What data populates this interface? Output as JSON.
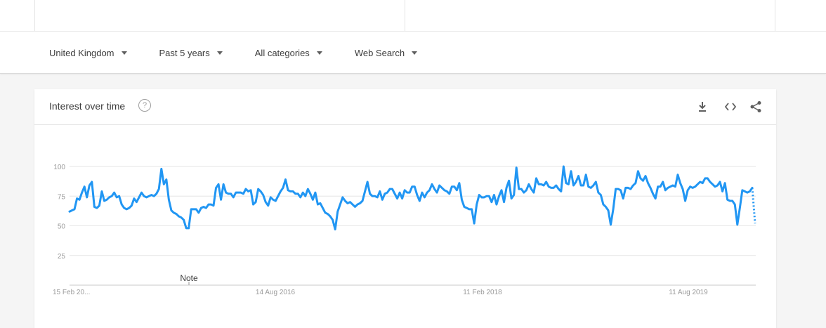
{
  "filters": [
    {
      "label": "United Kingdom"
    },
    {
      "label": "Past 5 years"
    },
    {
      "label": "All categories"
    },
    {
      "label": "Web Search"
    }
  ],
  "card": {
    "title": "Interest over time",
    "help_icon": "help-circle-icon",
    "tools": [
      "download-icon",
      "embed-code-icon",
      "share-icon"
    ]
  },
  "chart_data": {
    "type": "line",
    "ylim": [
      0,
      100
    ],
    "y_ticks": [
      "100",
      "75",
      "50",
      "25"
    ],
    "x_tick_labels": [
      "15 Feb 20...",
      "14 Aug 2016",
      "11 Feb 2018",
      "11 Aug 2019"
    ],
    "annotation": "Note",
    "grid": true,
    "line_color": "#2196f3",
    "series": [
      {
        "values": [
          62,
          63,
          64,
          73,
          72,
          78,
          83,
          74,
          84,
          87,
          66,
          65,
          67,
          79,
          71,
          72,
          74,
          75,
          78,
          74,
          75,
          68,
          65,
          64,
          65,
          67,
          73,
          70,
          74,
          78,
          75,
          74,
          75,
          76,
          75,
          77,
          81,
          98,
          85,
          89,
          72,
          63,
          61,
          60,
          58,
          57,
          55,
          48,
          48,
          64,
          64,
          64,
          61,
          65,
          66,
          65,
          68,
          68,
          67,
          82,
          85,
          72,
          85,
          78,
          77,
          77,
          74,
          78,
          78,
          78,
          77,
          81,
          79,
          80,
          68,
          70,
          81,
          79,
          76,
          70,
          67,
          74,
          72,
          71,
          75,
          79,
          82,
          89,
          80,
          79,
          79,
          77,
          77,
          74,
          78,
          75,
          81,
          77,
          72,
          78,
          68,
          69,
          65,
          61,
          60,
          58,
          55,
          47,
          62,
          68,
          74,
          71,
          69,
          70,
          68,
          66,
          68,
          69,
          71,
          79,
          87,
          77,
          75,
          75,
          74,
          79,
          72,
          77,
          78,
          81,
          81,
          77,
          73,
          78,
          73,
          80,
          78,
          78,
          83,
          83,
          76,
          71,
          78,
          74,
          78,
          80,
          85,
          81,
          78,
          84,
          82,
          80,
          79,
          77,
          83,
          83,
          80,
          86,
          72,
          66,
          65,
          64,
          64,
          52,
          68,
          76,
          74,
          74,
          75,
          75,
          70,
          76,
          68,
          75,
          80,
          70,
          82,
          88,
          73,
          76,
          99,
          81,
          81,
          78,
          80,
          85,
          81,
          78,
          90,
          85,
          85,
          84,
          87,
          83,
          82,
          82,
          84,
          81,
          79,
          100,
          86,
          85,
          96,
          84,
          87,
          92,
          84,
          84,
          93,
          83,
          82,
          84,
          87,
          78,
          76,
          68,
          66,
          63,
          51,
          64,
          81,
          81,
          80,
          73,
          82,
          82,
          81,
          84,
          86,
          96,
          90,
          88,
          92,
          86,
          82,
          77,
          73,
          83,
          83,
          87,
          80,
          82,
          83,
          84,
          83,
          93,
          86,
          81,
          71,
          80,
          83,
          82,
          83,
          85,
          87,
          86,
          90,
          90,
          87,
          85,
          83,
          84,
          87,
          79,
          86,
          72,
          71,
          71,
          68,
          51,
          65,
          80,
          79,
          78,
          79,
          82
        ],
        "projected_end": 52
      }
    ]
  }
}
